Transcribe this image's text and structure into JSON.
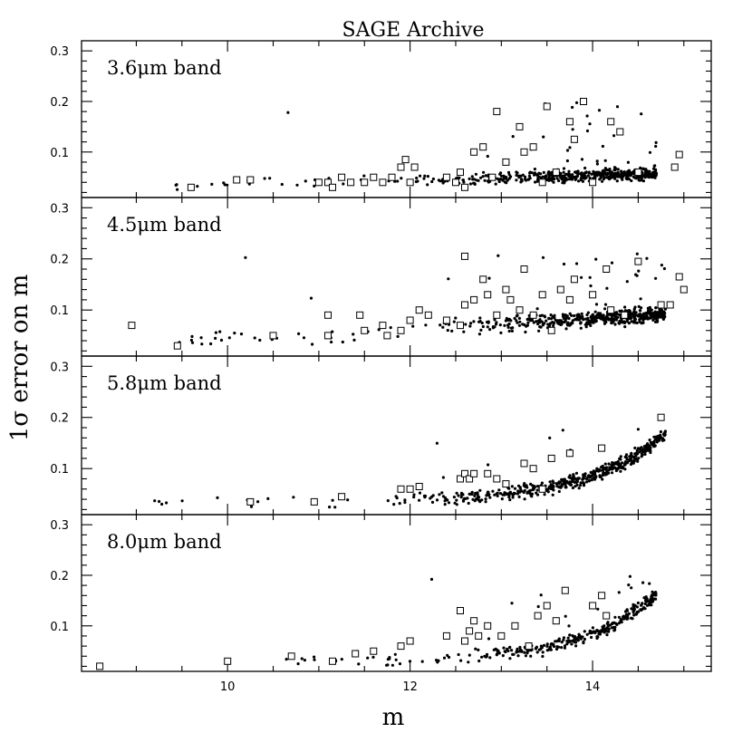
{
  "chart_data": {
    "type": "scatter",
    "title": "SAGE Archive",
    "xlabel": "m",
    "ylabel": "1σ error on m",
    "xlim": [
      8.4,
      15.3
    ],
    "ylim": [
      0.01,
      0.32
    ],
    "x_ticks": [
      10,
      12,
      14
    ],
    "y_ticks": [
      0.1,
      0.2,
      0.3
    ],
    "marker_legend": [],
    "panels": [
      {
        "label": "3.6μm band",
        "squares": [
          [
            9.6,
            0.03
          ],
          [
            10.1,
            0.045
          ],
          [
            10.25,
            0.045
          ],
          [
            11.0,
            0.04
          ],
          [
            11.1,
            0.04
          ],
          [
            11.15,
            0.03
          ],
          [
            11.25,
            0.05
          ],
          [
            11.35,
            0.04
          ],
          [
            11.5,
            0.04
          ],
          [
            11.6,
            0.05
          ],
          [
            11.7,
            0.04
          ],
          [
            11.8,
            0.05
          ],
          [
            11.9,
            0.07
          ],
          [
            11.95,
            0.085
          ],
          [
            12.0,
            0.04
          ],
          [
            12.05,
            0.07
          ],
          [
            12.4,
            0.05
          ],
          [
            12.5,
            0.04
          ],
          [
            12.55,
            0.06
          ],
          [
            12.6,
            0.03
          ],
          [
            12.7,
            0.1
          ],
          [
            12.8,
            0.11
          ],
          [
            12.9,
            0.05
          ],
          [
            12.95,
            0.18
          ],
          [
            13.05,
            0.08
          ],
          [
            13.2,
            0.15
          ],
          [
            13.25,
            0.1
          ],
          [
            13.35,
            0.11
          ],
          [
            13.45,
            0.04
          ],
          [
            13.5,
            0.19
          ],
          [
            13.6,
            0.06
          ],
          [
            13.75,
            0.16
          ],
          [
            13.8,
            0.125
          ],
          [
            13.9,
            0.2
          ],
          [
            14.0,
            0.04
          ],
          [
            14.2,
            0.16
          ],
          [
            14.3,
            0.14
          ],
          [
            14.5,
            0.06
          ],
          [
            14.9,
            0.07
          ],
          [
            14.95,
            0.095
          ]
        ]
      },
      {
        "label": "4.5μm band",
        "squares": [
          [
            8.95,
            0.07
          ],
          [
            9.45,
            0.03
          ],
          [
            10.5,
            0.05
          ],
          [
            11.1,
            0.09
          ],
          [
            11.1,
            0.05
          ],
          [
            11.45,
            0.09
          ],
          [
            11.5,
            0.06
          ],
          [
            11.7,
            0.07
          ],
          [
            11.75,
            0.05
          ],
          [
            11.9,
            0.06
          ],
          [
            12.0,
            0.08
          ],
          [
            12.1,
            0.1
          ],
          [
            12.2,
            0.09
          ],
          [
            12.4,
            0.08
          ],
          [
            12.55,
            0.07
          ],
          [
            12.6,
            0.205
          ],
          [
            12.6,
            0.11
          ],
          [
            12.7,
            0.12
          ],
          [
            12.8,
            0.16
          ],
          [
            12.85,
            0.13
          ],
          [
            12.95,
            0.09
          ],
          [
            13.05,
            0.14
          ],
          [
            13.1,
            0.12
          ],
          [
            13.2,
            0.1
          ],
          [
            13.25,
            0.18
          ],
          [
            13.35,
            0.09
          ],
          [
            13.45,
            0.13
          ],
          [
            13.55,
            0.06
          ],
          [
            13.65,
            0.14
          ],
          [
            13.75,
            0.12
          ],
          [
            13.8,
            0.16
          ],
          [
            14.0,
            0.13
          ],
          [
            14.15,
            0.18
          ],
          [
            14.2,
            0.1
          ],
          [
            14.35,
            0.09
          ],
          [
            14.5,
            0.195
          ],
          [
            14.75,
            0.11
          ],
          [
            14.85,
            0.11
          ],
          [
            14.95,
            0.165
          ],
          [
            15.0,
            0.14
          ]
        ]
      },
      {
        "label": "5.8μm band",
        "squares": [
          [
            10.25,
            0.035
          ],
          [
            10.95,
            0.035
          ],
          [
            11.25,
            0.045
          ],
          [
            11.9,
            0.06
          ],
          [
            12.0,
            0.06
          ],
          [
            12.1,
            0.065
          ],
          [
            12.55,
            0.08
          ],
          [
            12.6,
            0.09
          ],
          [
            12.65,
            0.08
          ],
          [
            12.7,
            0.09
          ],
          [
            12.85,
            0.09
          ],
          [
            12.95,
            0.08
          ],
          [
            13.05,
            0.07
          ],
          [
            13.25,
            0.11
          ],
          [
            13.35,
            0.1
          ],
          [
            13.45,
            0.06
          ],
          [
            13.55,
            0.12
          ],
          [
            13.75,
            0.13
          ],
          [
            14.1,
            0.14
          ],
          [
            14.75,
            0.2
          ]
        ]
      },
      {
        "label": "8.0μm band",
        "squares": [
          [
            8.6,
            0.02
          ],
          [
            10.0,
            0.03
          ],
          [
            10.7,
            0.04
          ],
          [
            11.15,
            0.03
          ],
          [
            11.4,
            0.045
          ],
          [
            11.6,
            0.05
          ],
          [
            11.9,
            0.06
          ],
          [
            12.0,
            0.07
          ],
          [
            12.4,
            0.08
          ],
          [
            12.55,
            0.13
          ],
          [
            12.6,
            0.07
          ],
          [
            12.65,
            0.09
          ],
          [
            12.7,
            0.11
          ],
          [
            12.75,
            0.08
          ],
          [
            12.85,
            0.1
          ],
          [
            13.0,
            0.08
          ],
          [
            13.15,
            0.1
          ],
          [
            13.3,
            0.06
          ],
          [
            13.4,
            0.12
          ],
          [
            13.5,
            0.14
          ],
          [
            13.6,
            0.11
          ],
          [
            13.7,
            0.17
          ],
          [
            14.0,
            0.14
          ],
          [
            14.1,
            0.16
          ],
          [
            14.15,
            0.12
          ]
        ]
      }
    ]
  }
}
